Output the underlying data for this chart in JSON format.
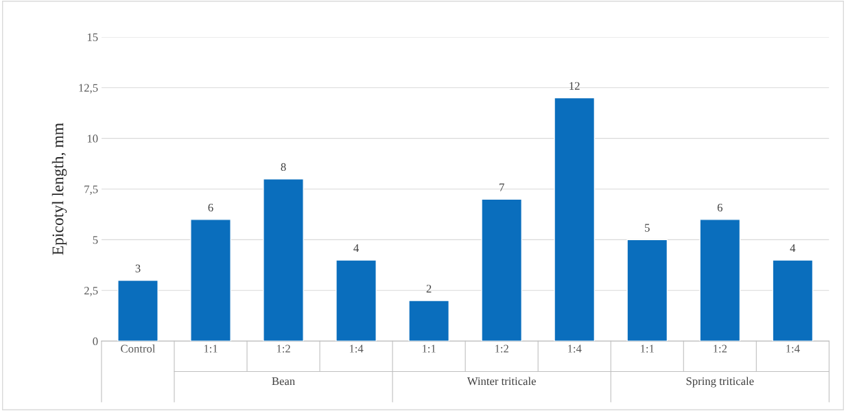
{
  "chart_data": {
    "type": "bar",
    "ylabel": "Epicotyl length, mm",
    "categories": [
      "Control",
      "1:1",
      "1:2",
      "1:4",
      "1:1",
      "1:2",
      "1:4",
      "1:1",
      "1:2",
      "1:4"
    ],
    "values": [
      3,
      6,
      8,
      4,
      2,
      7,
      12,
      5,
      6,
      4
    ],
    "color": "#0a6ebd",
    "ylim": [
      0,
      15
    ],
    "yticks": [
      0,
      {
        "value": 2.5,
        "label": "2,5"
      },
      5,
      {
        "value": 7.5,
        "label": "7,5"
      },
      10,
      {
        "value": 12.5,
        "label": "12,5"
      },
      15
    ],
    "grid": "y",
    "data_labels": true,
    "annotations": [
      "Bean",
      "Winter triticale",
      "Spring triticale"
    ]
  }
}
